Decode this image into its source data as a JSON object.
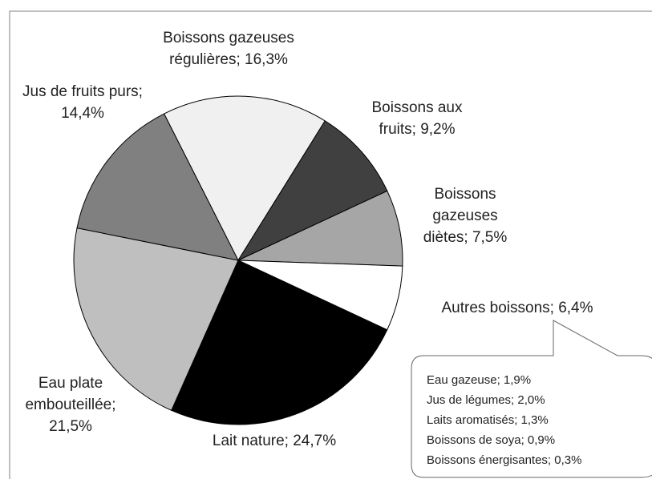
{
  "chart_data": {
    "type": "pie",
    "categories": [
      "Boissons gazeuses régulières; 16,3%",
      "Boissons aux fruits; 9,2%",
      "Boissons gazeuses diètes; 7,5%",
      "Autres boissons; 6,4%",
      "Lait nature; 24,7%",
      "Eau plate embouteillée; 21,5%",
      "Jus de fruits purs; 14,4%"
    ],
    "values": [
      16.3,
      9.2,
      7.5,
      6.4,
      24.7,
      21.5,
      14.4
    ],
    "colors": [
      "#f0f0f0",
      "#404040",
      "#a6a6a6",
      "#ffffff",
      "#000000",
      "#bfbfbf",
      "#808080"
    ],
    "annotation": [
      "Eau gazeuse; 1,9%",
      "Jus de légumes; 2,0%",
      "Laits aromatisés; 1,3%",
      "Boissons de soya; 0,9%",
      "Boissons énergisantes; 0,3%"
    ]
  }
}
